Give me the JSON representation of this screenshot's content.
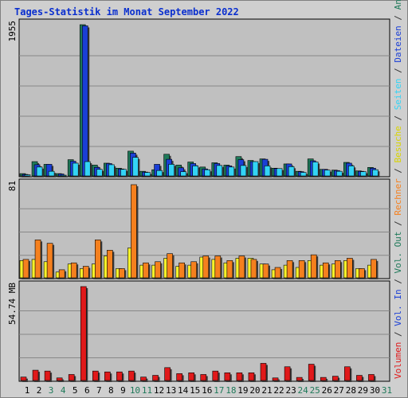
{
  "title": "Tages-Statistik im Monat September 2022",
  "colors": {
    "anfragen": "#1f7a5a",
    "dateien": "#1a3fd6",
    "seiten": "#33d4f5",
    "besuche": "#f7f22a",
    "rechner": "#f5801e",
    "volumen": "#e0191a",
    "weekend_label": "#1f7a5a",
    "weekday_label": "#000000"
  },
  "right_labels": {
    "top": [
      {
        "text": "Anfragen",
        "color": "#1f7a5a"
      },
      {
        "text": " / ",
        "color": "#333333"
      },
      {
        "text": "Dateien",
        "color": "#1a3fd6"
      },
      {
        "text": " / ",
        "color": "#333333"
      },
      {
        "text": "Seiten",
        "color": "#33d4f5"
      },
      {
        "text": " / ",
        "color": "#333333"
      },
      {
        "text": "Besuche",
        "color": "#d9d400"
      },
      {
        "text": " / ",
        "color": "#333333"
      },
      {
        "text": "Rechner",
        "color": "#f5801e"
      },
      {
        "text": " / ",
        "color": "#333333"
      },
      {
        "text": "Vol. Out",
        "color": "#1f7a5a"
      },
      {
        "text": " / ",
        "color": "#333333"
      },
      {
        "text": "Vol. In",
        "color": "#1a3fd6"
      },
      {
        "text": " / ",
        "color": "#333333"
      },
      {
        "text": "Volumen",
        "color": "#e0191a"
      }
    ]
  },
  "chart_data": [
    {
      "type": "bar",
      "panel": "hits",
      "y_max_label": "1955",
      "ylim": [
        0,
        1955
      ],
      "x": [
        1,
        2,
        3,
        4,
        5,
        6,
        7,
        8,
        9,
        10,
        11,
        12,
        13,
        14,
        15,
        16,
        17,
        18,
        19,
        20,
        21,
        22,
        23,
        24,
        25,
        26,
        27,
        28,
        29,
        30,
        31
      ],
      "weekend_days": [
        3,
        4,
        10,
        11,
        17,
        18,
        24,
        25,
        31
      ],
      "series": [
        {
          "name": "Anfragen",
          "values": [
            30,
            185,
            150,
            30,
            210,
            1955,
            140,
            165,
            100,
            320,
            60,
            80,
            280,
            140,
            180,
            115,
            170,
            140,
            250,
            200,
            220,
            100,
            155,
            60,
            220,
            85,
            75,
            175,
            65,
            110,
            0
          ]
        },
        {
          "name": "Dateien",
          "values": [
            20,
            145,
            150,
            25,
            190,
            1940,
            110,
            160,
            90,
            295,
            50,
            150,
            215,
            105,
            160,
            90,
            160,
            130,
            210,
            185,
            215,
            95,
            155,
            55,
            195,
            85,
            70,
            165,
            60,
            100,
            0
          ]
        },
        {
          "name": "Seiten",
          "values": [
            15,
            115,
            60,
            10,
            165,
            185,
            85,
            145,
            85,
            240,
            45,
            70,
            150,
            55,
            130,
            80,
            135,
            115,
            135,
            185,
            130,
            95,
            120,
            45,
            180,
            75,
            60,
            130,
            55,
            80,
            0
          ]
        }
      ]
    },
    {
      "type": "bar",
      "panel": "visitors",
      "y_max_label": "81",
      "ylim": [
        0,
        81
      ],
      "x": [
        1,
        2,
        3,
        4,
        5,
        6,
        7,
        8,
        9,
        10,
        11,
        12,
        13,
        14,
        15,
        16,
        17,
        18,
        19,
        20,
        21,
        22,
        23,
        24,
        25,
        26,
        27,
        28,
        29,
        30,
        31
      ],
      "series": [
        {
          "name": "Besuche",
          "values": [
            15,
            16,
            14,
            5,
            12,
            8,
            12,
            19,
            8,
            26,
            11,
            11,
            17,
            10,
            11,
            18,
            16,
            13,
            17,
            17,
            12,
            7,
            11,
            9,
            15,
            11,
            12,
            15,
            8,
            11,
            0
          ]
        },
        {
          "name": "Rechner",
          "values": [
            16,
            33,
            30,
            7,
            13,
            10,
            33,
            24,
            8,
            81,
            13,
            14,
            21,
            13,
            14,
            19,
            19,
            15,
            19,
            16,
            12,
            9,
            15,
            15,
            20,
            13,
            15,
            17,
            8,
            16,
            0
          ]
        }
      ]
    },
    {
      "type": "bar",
      "panel": "volume",
      "y_max_label": "54.74 MB",
      "ylim": [
        0,
        54.74
      ],
      "x": [
        1,
        2,
        3,
        4,
        5,
        6,
        7,
        8,
        9,
        10,
        11,
        12,
        13,
        14,
        15,
        16,
        17,
        18,
        19,
        20,
        21,
        22,
        23,
        24,
        25,
        26,
        27,
        28,
        29,
        30,
        31
      ],
      "series": [
        {
          "name": "Volumen",
          "values": [
            2.0,
            6.0,
            5.5,
            1.5,
            3.5,
            54.74,
            5.5,
            5.0,
            5.0,
            5.5,
            2.0,
            3.0,
            7.5,
            4.0,
            4.5,
            3.5,
            5.5,
            4.5,
            4.5,
            4.5,
            10.0,
            1.5,
            8.0,
            1.8,
            9.5,
            1.8,
            2.5,
            8.0,
            3.0,
            3.5,
            0
          ]
        }
      ]
    }
  ]
}
